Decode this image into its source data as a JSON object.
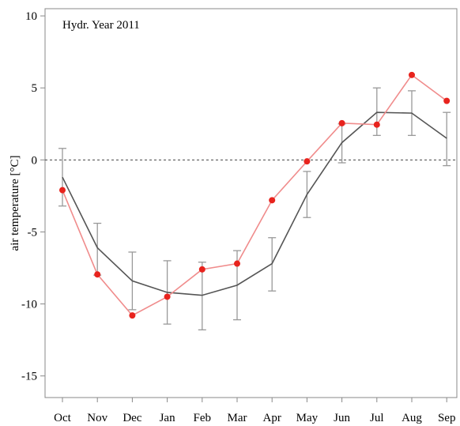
{
  "chart_data": {
    "type": "line",
    "annotation": "Hydr. Year 2011",
    "xlabel": "",
    "ylabel": "air temperature [°C]",
    "ylim": [
      -16.5,
      10.5
    ],
    "yticks": [
      -15,
      -10,
      -5,
      0,
      5,
      10
    ],
    "categories": [
      "Oct",
      "Nov",
      "Dec",
      "Jan",
      "Feb",
      "Mar",
      "Apr",
      "May",
      "Jun",
      "Jul",
      "Aug",
      "Sep"
    ],
    "reference_line_y": 0,
    "grid": false,
    "series": [
      {
        "role": "mean with error bars",
        "color": "#555555",
        "values": [
          -1.2,
          -6.1,
          -8.4,
          -9.2,
          -9.4,
          -8.7,
          -7.2,
          -2.4,
          1.2,
          3.3,
          3.25,
          1.5
        ],
        "error_low": [
          -3.2,
          -8.0,
          -10.4,
          -11.4,
          -11.8,
          -11.1,
          -9.1,
          -4.0,
          -0.2,
          1.7,
          1.7,
          -0.4
        ],
        "error_high": [
          0.8,
          -4.4,
          -6.4,
          -7.0,
          -7.1,
          -6.3,
          -5.4,
          -0.8,
          2.5,
          5.0,
          4.8,
          3.3
        ]
      },
      {
        "role": "2011",
        "color": "#e8231d",
        "line_color": "#f08c8c",
        "values": [
          -2.1,
          -7.95,
          -10.8,
          -9.5,
          -7.6,
          -7.2,
          -2.8,
          -0.1,
          2.55,
          2.45,
          5.9,
          4.1
        ]
      }
    ]
  }
}
